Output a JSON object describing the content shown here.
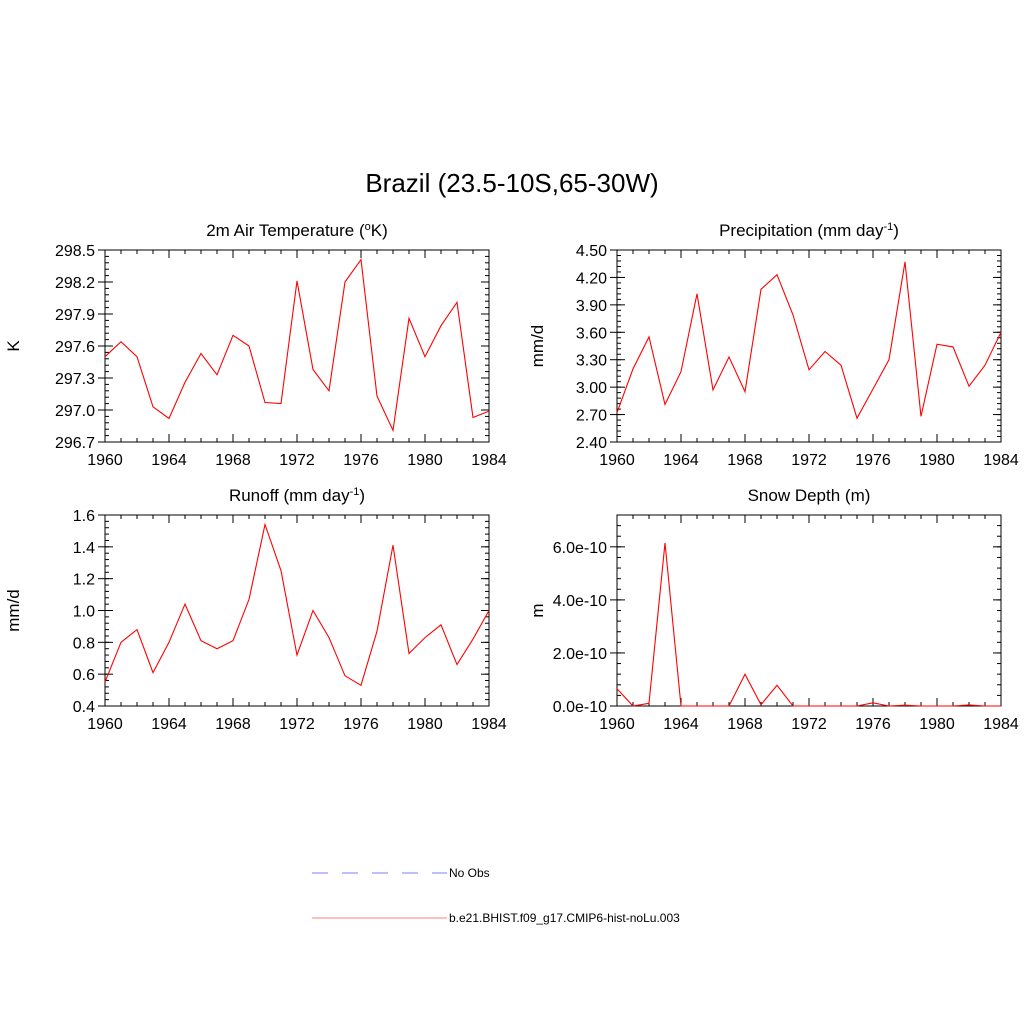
{
  "title": "Brazil (23.5-10S,65-30W)",
  "colors": {
    "model": "#ff0000",
    "obs": "#9999ff",
    "axis": "#000000"
  },
  "legend": {
    "obs_label": "No Obs",
    "model_label": "b.e21.BHIST.f09_g17.CMIP6-hist-noLu.003"
  },
  "chart_data": [
    {
      "type": "line",
      "title": "2m Air Temperature (",
      "title_sup": "o",
      "title_after": "K)",
      "ylabel": "K",
      "xlim": [
        1960,
        1984
      ],
      "ylim": [
        296.7,
        298.5
      ],
      "xticks": [
        "1960",
        "1964",
        "1968",
        "1972",
        "1976",
        "1980",
        "1984"
      ],
      "yticks": [
        "296.7",
        "297.0",
        "297.3",
        "297.6",
        "297.9",
        "298.2",
        "298.5"
      ],
      "series": [
        {
          "x": [
            1960,
            1961,
            1962,
            1963,
            1964,
            1965,
            1966,
            1967,
            1968,
            1969,
            1970,
            1971,
            1972,
            1973,
            1974,
            1975,
            1976,
            1977,
            1978,
            1979,
            1980,
            1981,
            1982,
            1983,
            1984
          ],
          "values": [
            297.5,
            297.64,
            297.5,
            297.03,
            296.92,
            297.26,
            297.53,
            297.33,
            297.7,
            297.6,
            297.07,
            297.06,
            298.21,
            297.38,
            297.18,
            298.2,
            298.41,
            297.13,
            296.81,
            297.86,
            297.5,
            297.79,
            298.01,
            296.93,
            296.99
          ]
        }
      ]
    },
    {
      "type": "line",
      "title": "Precipitation (mm day",
      "title_sup": "-1",
      "title_after": ")",
      "ylabel": "mm/d",
      "xlim": [
        1960,
        1984
      ],
      "ylim": [
        2.4,
        4.5
      ],
      "xticks": [
        "1960",
        "1964",
        "1968",
        "1972",
        "1976",
        "1980",
        "1984"
      ],
      "yticks": [
        "2.40",
        "2.70",
        "3.00",
        "3.30",
        "3.60",
        "3.90",
        "4.20",
        "4.50"
      ],
      "series": [
        {
          "x": [
            1960,
            1961,
            1962,
            1963,
            1964,
            1965,
            1966,
            1967,
            1968,
            1969,
            1970,
            1971,
            1972,
            1973,
            1974,
            1975,
            1976,
            1977,
            1978,
            1979,
            1980,
            1981,
            1982,
            1983,
            1984
          ],
          "values": [
            2.72,
            3.2,
            3.55,
            2.81,
            3.17,
            4.02,
            2.97,
            3.33,
            2.95,
            4.07,
            4.23,
            3.79,
            3.19,
            3.39,
            3.24,
            2.66,
            2.98,
            3.3,
            4.37,
            2.68,
            3.47,
            3.44,
            3.01,
            3.24,
            3.6
          ]
        }
      ]
    },
    {
      "type": "line",
      "title": "Runoff (mm day",
      "title_sup": "-1",
      "title_after": ")",
      "ylabel": "mm/d",
      "xlim": [
        1960,
        1984
      ],
      "ylim": [
        0.4,
        1.6
      ],
      "xticks": [
        "1960",
        "1964",
        "1968",
        "1972",
        "1976",
        "1980",
        "1984"
      ],
      "yticks": [
        "0.4",
        "0.6",
        "0.8",
        "1.0",
        "1.2",
        "1.4",
        "1.6"
      ],
      "series": [
        {
          "x": [
            1960,
            1961,
            1962,
            1963,
            1964,
            1965,
            1966,
            1967,
            1968,
            1969,
            1970,
            1971,
            1972,
            1973,
            1974,
            1975,
            1976,
            1977,
            1978,
            1979,
            1980,
            1981,
            1982,
            1983,
            1984
          ],
          "values": [
            0.55,
            0.8,
            0.88,
            0.61,
            0.8,
            1.04,
            0.81,
            0.76,
            0.81,
            1.07,
            1.54,
            1.25,
            0.72,
            1.0,
            0.83,
            0.59,
            0.53,
            0.87,
            1.41,
            0.73,
            0.83,
            0.91,
            0.66,
            0.82,
            1.0
          ]
        }
      ]
    },
    {
      "type": "line",
      "title": "Snow Depth (m)",
      "title_sup": "",
      "title_after": "",
      "ylabel": "m",
      "xlim": [
        1960,
        1984
      ],
      "ylim": [
        0,
        7.2e-10
      ],
      "ytick_values": [
        0,
        2e-10,
        4e-10,
        6e-10
      ],
      "xticks": [
        "1960",
        "1964",
        "1968",
        "1972",
        "1976",
        "1980",
        "1984"
      ],
      "yticks": [
        "0.0e-10",
        "2.0e-10",
        "4.0e-10",
        "6.0e-10"
      ],
      "series": [
        {
          "x": [
            1960,
            1961,
            1962,
            1963,
            1964,
            1965,
            1966,
            1967,
            1968,
            1969,
            1970,
            1971,
            1972,
            1973,
            1974,
            1975,
            1976,
            1977,
            1978,
            1979,
            1980,
            1981,
            1982,
            1983,
            1984
          ],
          "values": [
            6.5e-11,
            0,
            1e-11,
            6.15e-10,
            0,
            0,
            0,
            0,
            1.2e-10,
            5e-12,
            7.8e-11,
            0,
            0,
            0,
            0,
            0,
            1.2e-11,
            0,
            3e-12,
            0,
            0,
            0,
            4e-12,
            0,
            0
          ]
        }
      ]
    }
  ]
}
